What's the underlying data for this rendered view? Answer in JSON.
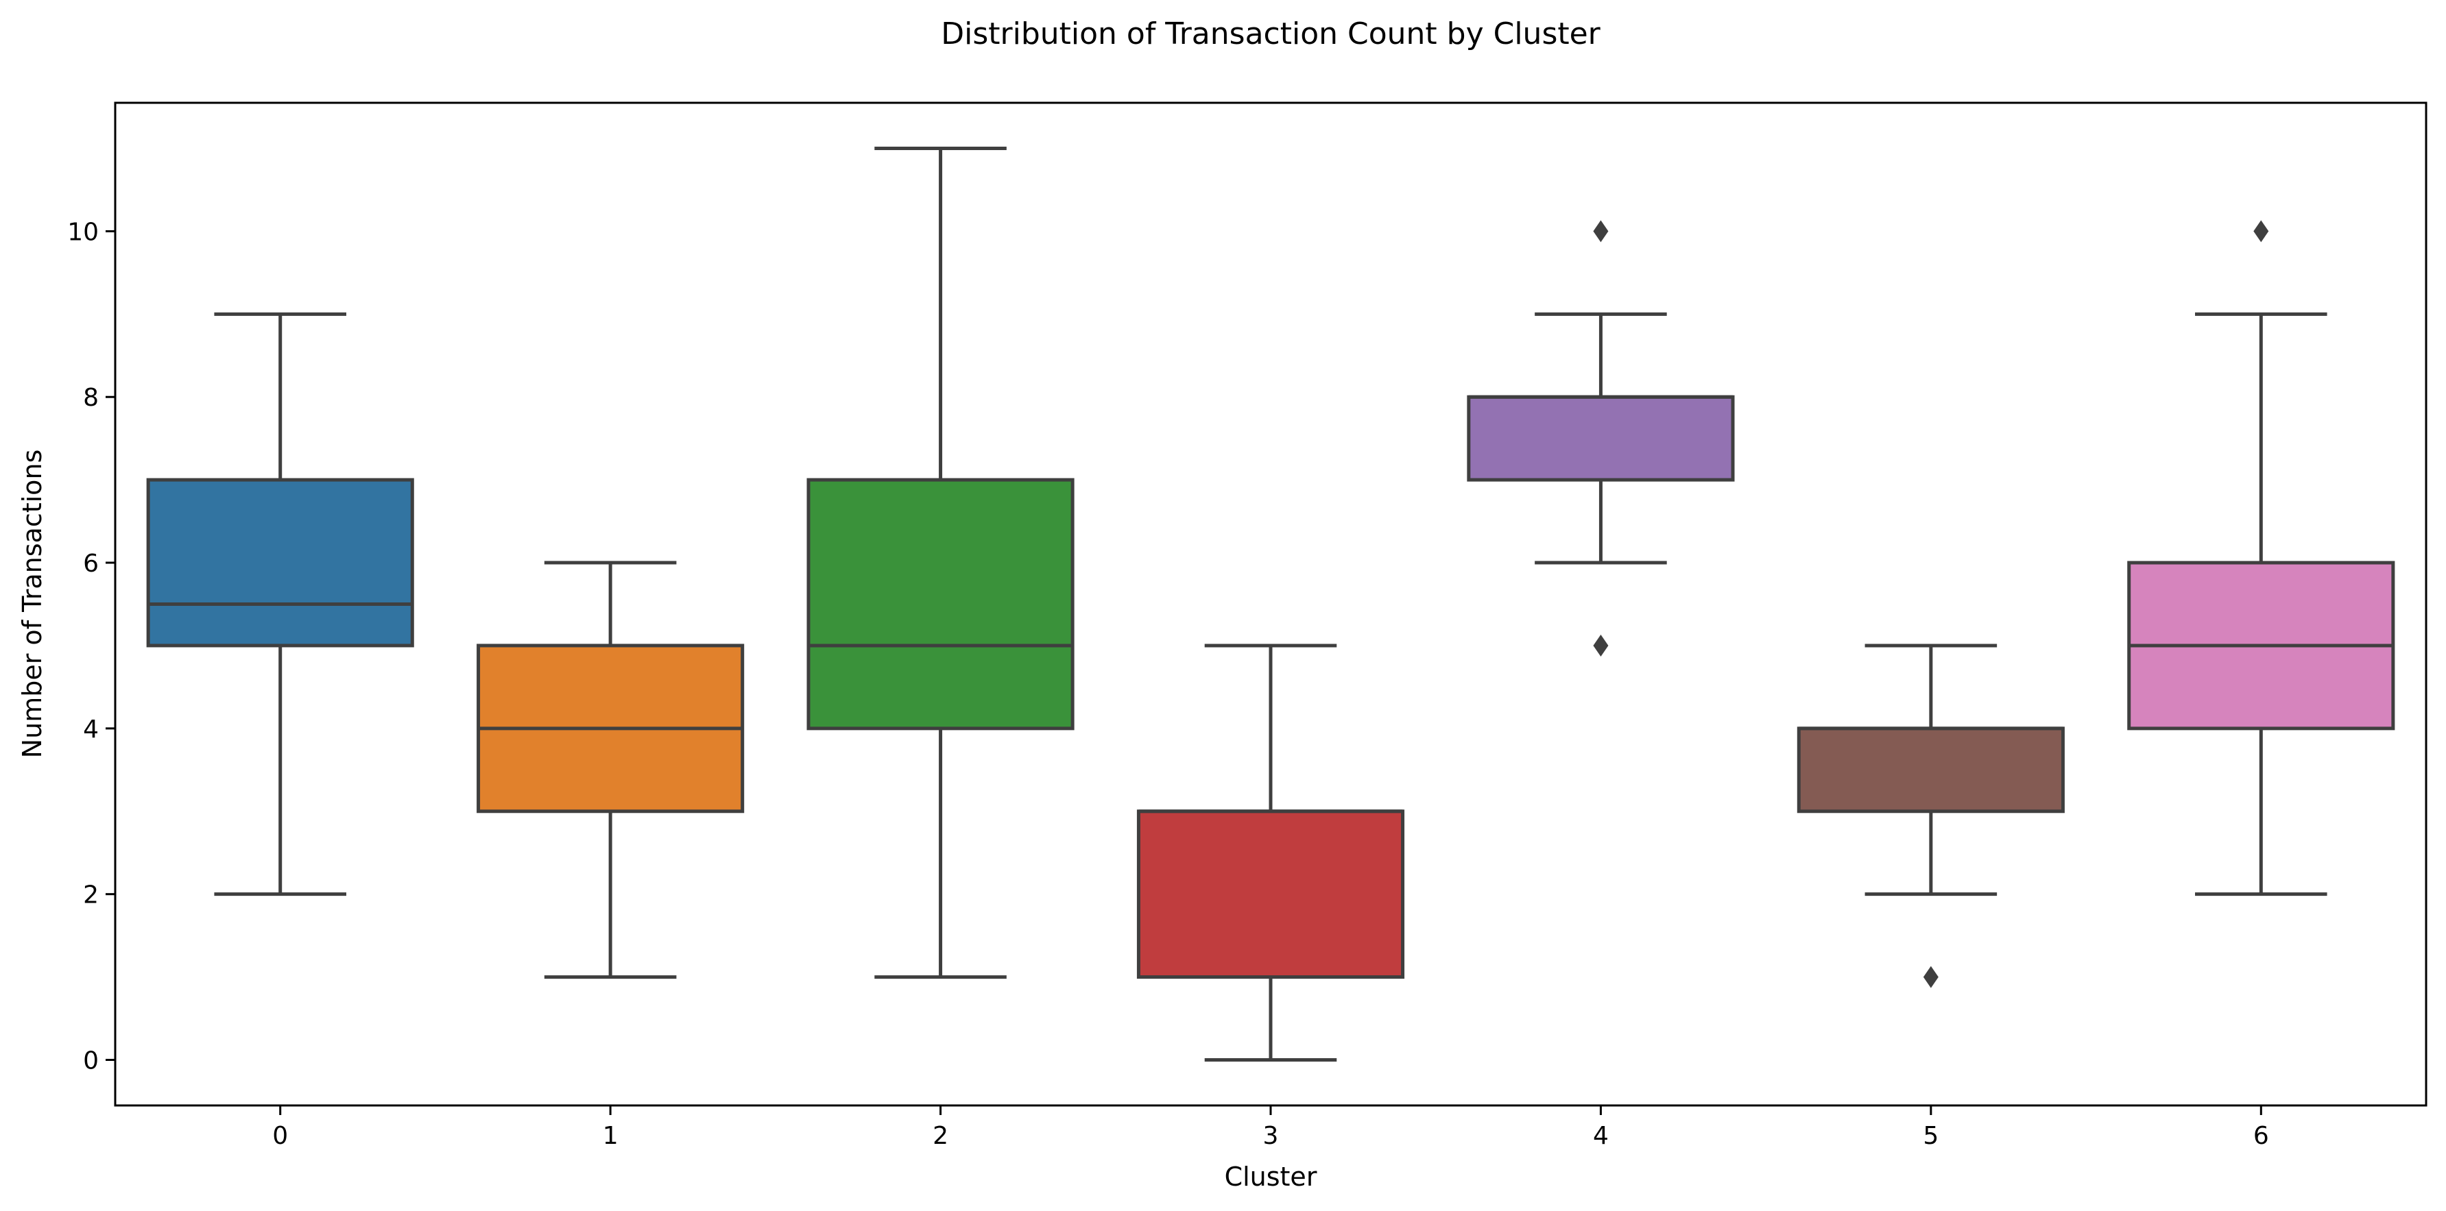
{
  "chart_data": {
    "type": "box",
    "title": "Distribution of Transaction Count by Cluster",
    "xlabel": "Cluster",
    "ylabel": "Number of Transactions",
    "categories": [
      "0",
      "1",
      "2",
      "3",
      "4",
      "5",
      "6"
    ],
    "ylim": [
      -0.55,
      11.55
    ],
    "yticks": [
      0,
      2,
      4,
      6,
      8,
      10
    ],
    "ytick_labels": [
      "0",
      "2",
      "4",
      "6",
      "8",
      "10"
    ],
    "grid": false,
    "legend": "none",
    "box_edge_color": "#3f3f3f",
    "boxes": [
      {
        "category": "0",
        "whisker_low": 2,
        "q1": 5,
        "median": 5.5,
        "q3": 7,
        "whisker_high": 9,
        "outliers": [],
        "color": "#3274a1"
      },
      {
        "category": "1",
        "whisker_low": 1,
        "q1": 3,
        "median": 4,
        "q3": 5,
        "whisker_high": 6,
        "outliers": [],
        "color": "#e1812c"
      },
      {
        "category": "2",
        "whisker_low": 1,
        "q1": 4,
        "median": 5,
        "q3": 7,
        "whisker_high": 11,
        "outliers": [],
        "color": "#3a923a"
      },
      {
        "category": "3",
        "whisker_low": 0,
        "q1": 1,
        "median": 3,
        "q3": 3,
        "whisker_high": 5,
        "outliers": [],
        "color": "#c03d3e"
      },
      {
        "category": "4",
        "whisker_low": 6,
        "q1": 7,
        "median": 8,
        "q3": 8,
        "whisker_high": 9,
        "outliers": [
          10,
          5
        ],
        "color": "#9372b2"
      },
      {
        "category": "5",
        "whisker_low": 2,
        "q1": 3,
        "median": 4,
        "q3": 4,
        "whisker_high": 5,
        "outliers": [
          1
        ],
        "color": "#845b53"
      },
      {
        "category": "6",
        "whisker_low": 2,
        "q1": 4,
        "median": 5,
        "q3": 6,
        "whisker_high": 9,
        "outliers": [
          10
        ],
        "color": "#d684bd"
      }
    ]
  }
}
